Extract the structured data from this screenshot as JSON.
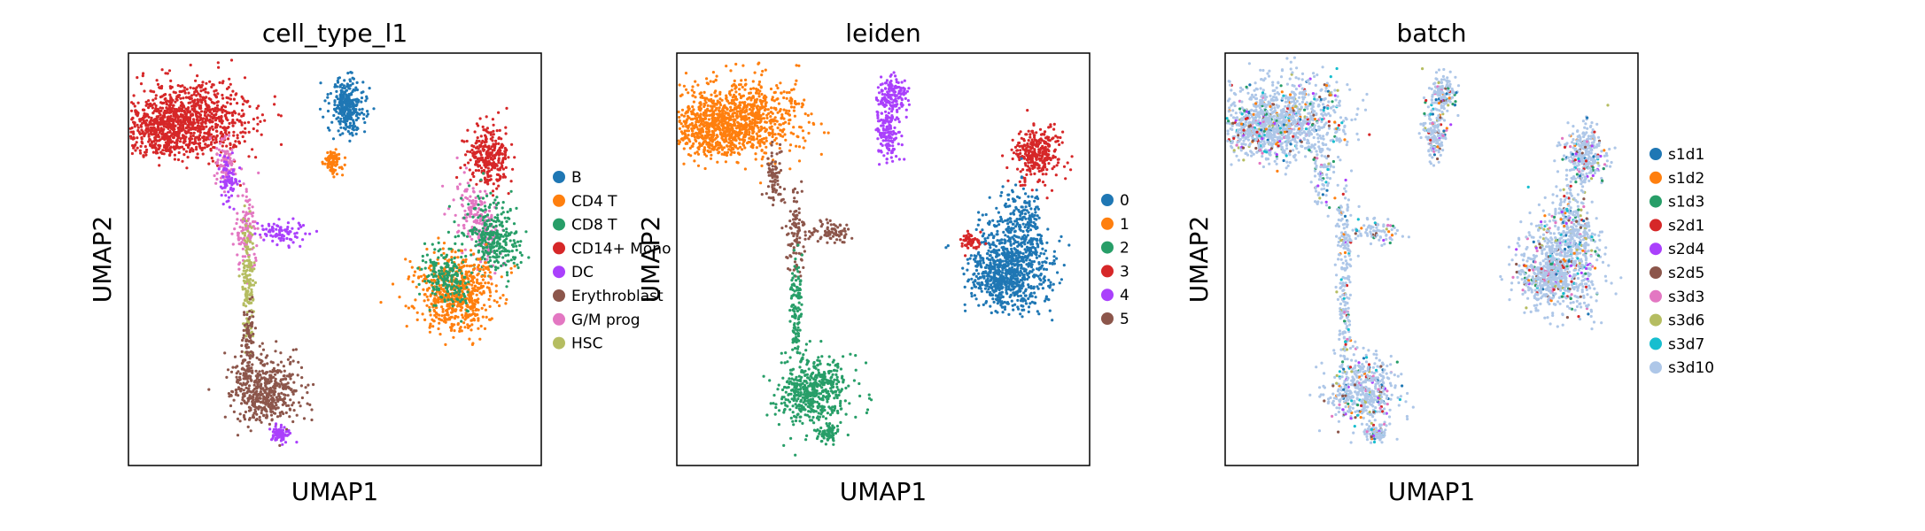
{
  "chart_data": [
    {
      "type": "scatter",
      "title": "cell_type_l1",
      "xlabel": "UMAP1",
      "ylabel": "UMAP2",
      "grid": false,
      "legend_position": "right",
      "legend": [
        {
          "label": "B",
          "color": "#1f77b4"
        },
        {
          "label": "CD4 T",
          "color": "#ff7f0e"
        },
        {
          "label": "CD8 T",
          "color": "#279e68"
        },
        {
          "label": "CD14+ Mono",
          "color": "#d62728"
        },
        {
          "label": "DC",
          "color": "#aa40fc"
        },
        {
          "label": "Erythroblast",
          "color": "#8c564b"
        },
        {
          "label": "G/M prog",
          "color": "#e377c2"
        },
        {
          "label": "HSC",
          "color": "#b5bd61"
        }
      ]
    },
    {
      "type": "scatter",
      "title": "leiden",
      "xlabel": "UMAP1",
      "ylabel": "UMAP2",
      "grid": false,
      "legend_position": "right",
      "legend": [
        {
          "label": "0",
          "color": "#1f77b4"
        },
        {
          "label": "1",
          "color": "#ff7f0e"
        },
        {
          "label": "2",
          "color": "#279e68"
        },
        {
          "label": "3",
          "color": "#d62728"
        },
        {
          "label": "4",
          "color": "#aa40fc"
        },
        {
          "label": "5",
          "color": "#8c564b"
        }
      ]
    },
    {
      "type": "scatter",
      "title": "batch",
      "xlabel": "UMAP1",
      "ylabel": "UMAP2",
      "grid": false,
      "legend_position": "right",
      "legend": [
        {
          "label": "s1d1",
          "color": "#1f77b4"
        },
        {
          "label": "s1d2",
          "color": "#ff7f0e"
        },
        {
          "label": "s1d3",
          "color": "#279e68"
        },
        {
          "label": "s2d1",
          "color": "#d62728"
        },
        {
          "label": "s2d4",
          "color": "#aa40fc"
        },
        {
          "label": "s2d5",
          "color": "#8c564b"
        },
        {
          "label": "s3d3",
          "color": "#e377c2"
        },
        {
          "label": "s3d6",
          "color": "#b5bd61"
        },
        {
          "label": "s3d7",
          "color": "#17becf"
        },
        {
          "label": "s3d10",
          "color": "#aec7e8"
        }
      ]
    }
  ]
}
